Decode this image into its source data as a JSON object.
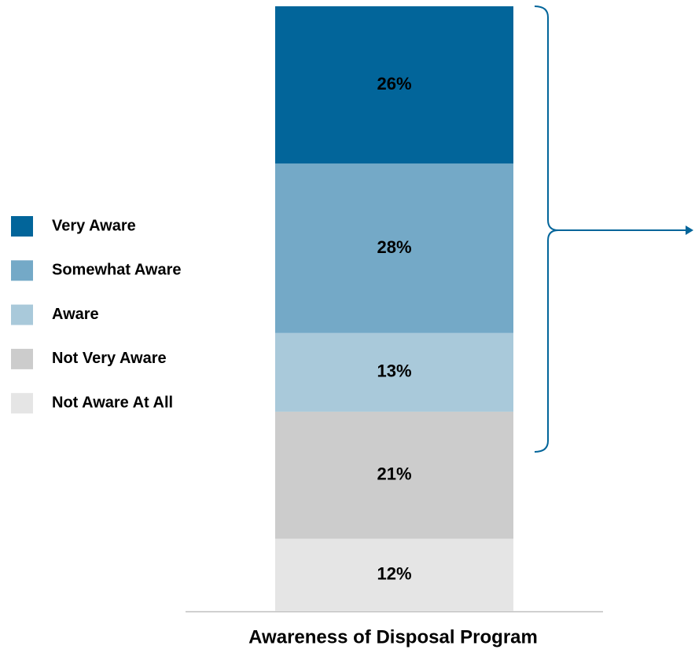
{
  "chart_data": {
    "type": "stacked_bar",
    "categories": [
      "Awareness of Disposal Program"
    ],
    "series": [
      {
        "name": "Very Aware",
        "color": "#02659a",
        "values": [
          26
        ],
        "value_labels": [
          "26%"
        ]
      },
      {
        "name": "Somewhat Aware",
        "color": "#74a9c7",
        "values": [
          28
        ],
        "value_labels": [
          "28%"
        ]
      },
      {
        "name": "Aware",
        "color": "#a9c9da",
        "values": [
          13
        ],
        "value_labels": [
          "13%"
        ]
      },
      {
        "name": "Not Very Aware",
        "color": "#cccccc",
        "values": [
          21
        ],
        "value_labels": [
          "21%"
        ]
      },
      {
        "name": "Not Aware At All",
        "color": "#e5e5e5",
        "values": [
          12
        ],
        "value_labels": [
          "12%"
        ]
      }
    ]
  }
}
